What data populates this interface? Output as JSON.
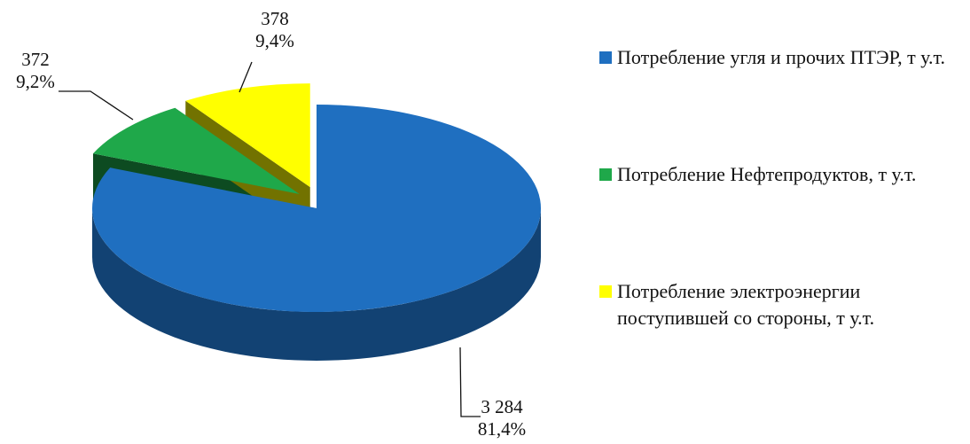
{
  "chart_data": {
    "type": "pie",
    "categories": [
      "Потребление угля и прочих ПТЭР, т у.т.",
      "Потребление Нефтепродуктов, т у.т.",
      "Потребление электроэнергии поступившей со стороны, т у.т."
    ],
    "values": [
      3284,
      372,
      378
    ],
    "value_labels": [
      "3 284",
      "372",
      "378"
    ],
    "percent_values": [
      81.4,
      9.2,
      9.4
    ],
    "percent_labels": [
      "81,4%",
      "9,2%",
      "9,4%"
    ],
    "colors": [
      "#1f6fc0",
      "#1fa84a",
      "#ffff00"
    ],
    "legend": "right"
  }
}
